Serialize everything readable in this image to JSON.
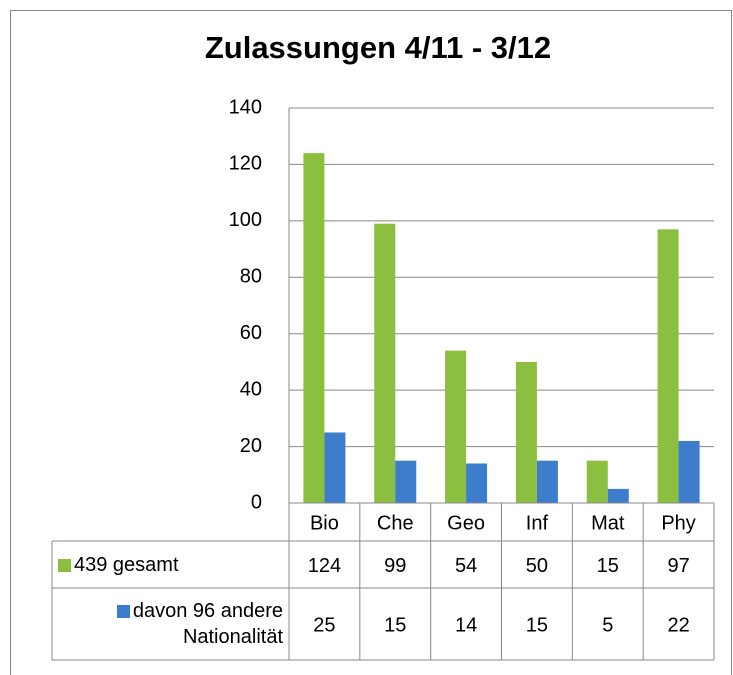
{
  "chart_data": {
    "type": "bar",
    "title": "Zulassungen 4/11 - 3/12",
    "categories": [
      "Bio",
      "Che",
      "Geo",
      "Inf",
      "Mat",
      "Phy"
    ],
    "series": [
      {
        "name": "439 gesamt",
        "color": "#8cbf3f",
        "values": [
          124,
          99,
          54,
          50,
          15,
          97
        ]
      },
      {
        "name": "davon 96 andere Nationalität",
        "color": "#3d7dcc",
        "values": [
          25,
          15,
          14,
          15,
          5,
          22
        ]
      }
    ],
    "ylim": [
      0,
      140
    ],
    "yticks": [
      0,
      20,
      40,
      60,
      80,
      100,
      120,
      140
    ],
    "grid": true,
    "data_table": true
  }
}
